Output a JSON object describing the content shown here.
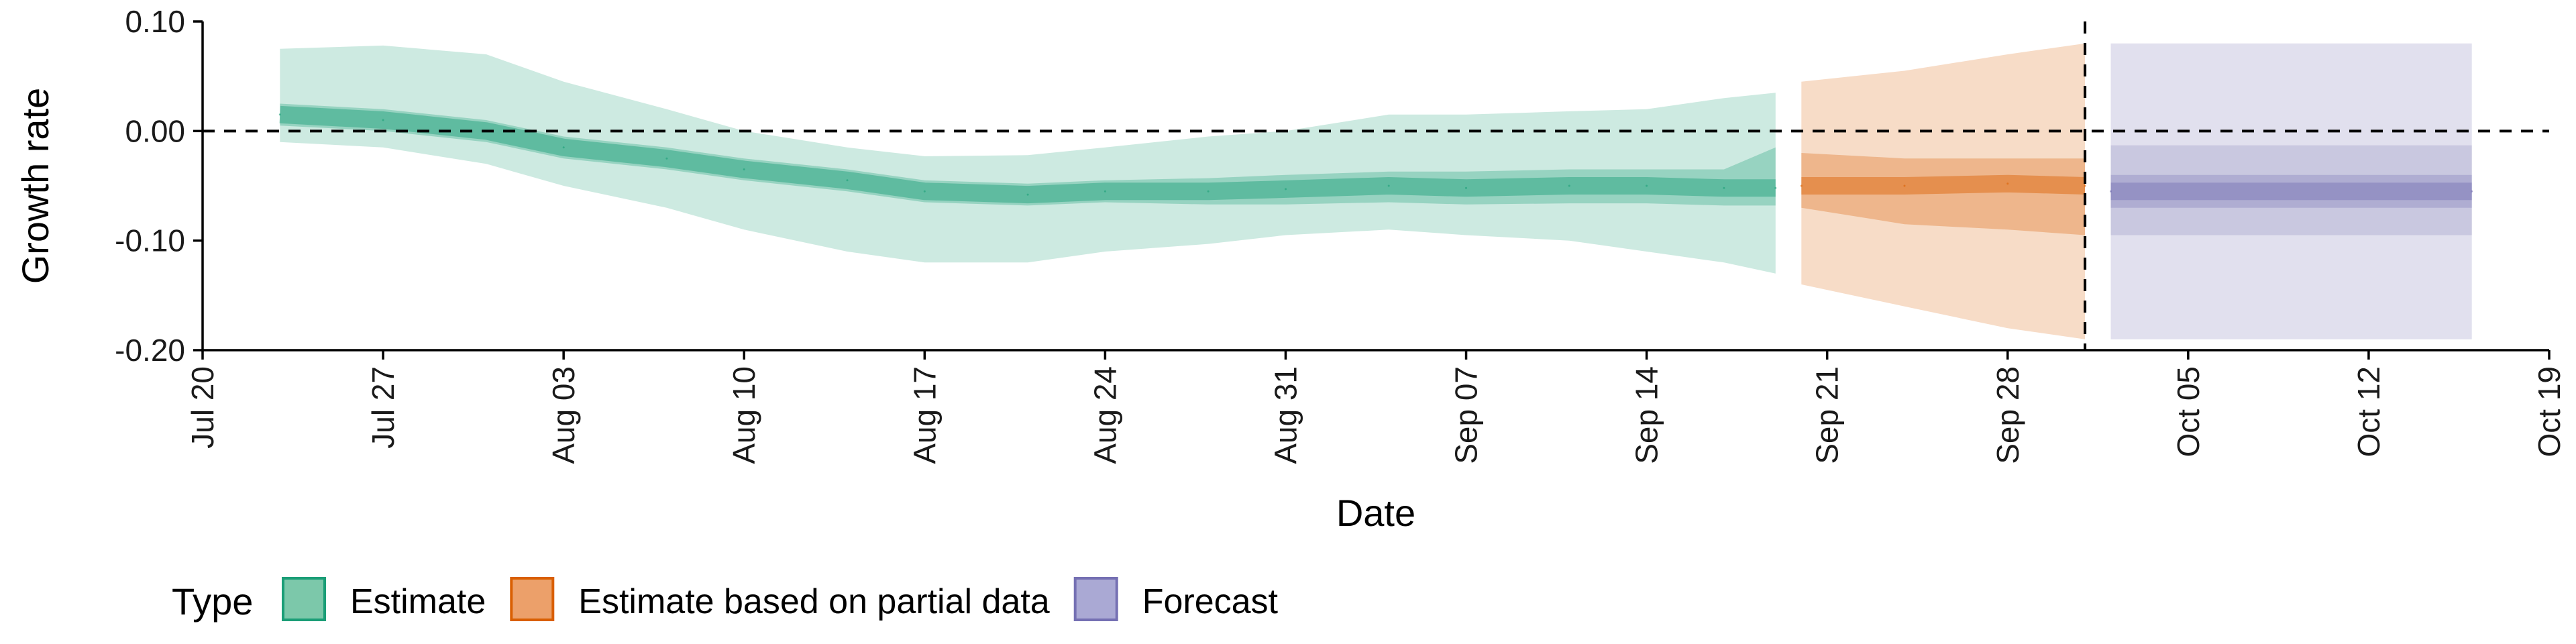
{
  "chart_data": {
    "type": "area",
    "xlabel": "Date",
    "ylabel": "Growth rate",
    "xlim": [
      "2020-07-20",
      "2020-10-19"
    ],
    "ylim": [
      -0.2,
      0.1
    ],
    "y_ticks": [
      0.1,
      0.0,
      -0.1,
      -0.2
    ],
    "y_tick_labels": [
      "0.10",
      "0.00",
      "-0.10",
      "-0.20"
    ],
    "x_ticks": [
      "2020-07-20",
      "2020-07-27",
      "2020-08-03",
      "2020-08-10",
      "2020-08-17",
      "2020-08-24",
      "2020-08-31",
      "2020-09-07",
      "2020-09-14",
      "2020-09-21",
      "2020-09-28",
      "2020-10-05",
      "2020-10-12",
      "2020-10-19"
    ],
    "x_tick_labels": [
      "Jul 20",
      "Jul 27",
      "Aug 03",
      "Aug 10",
      "Aug 17",
      "Aug 24",
      "Aug 31",
      "Sep 07",
      "Sep 14",
      "Sep 21",
      "Sep 28",
      "Oct 05",
      "Oct 12",
      "Oct 19"
    ],
    "reference_lines": {
      "horizontal_y": 0,
      "vertical_x": "2020-10-01"
    },
    "grid": false,
    "legend": {
      "title": "Type",
      "placement": "bottom-left",
      "entries": [
        {
          "label": "Estimate",
          "fill": "#7cc8aa",
          "stroke": "#1b9e77"
        },
        {
          "label": "Estimate based on partial data",
          "fill": "#eca06a",
          "stroke": "#d95f02"
        },
        {
          "label": "Forecast",
          "fill": "#aaa9d4",
          "stroke": "#7570b3"
        }
      ]
    },
    "series": [
      {
        "name": "Estimate",
        "color": "#1b9e77",
        "points": [
          {
            "x": "2020-07-23",
            "median": 0.015,
            "lower50": 0.005,
            "upper50": 0.025,
            "lower90": -0.01,
            "upper90": 0.075
          },
          {
            "x": "2020-07-27",
            "median": 0.01,
            "lower50": 0.0,
            "upper50": 0.02,
            "lower90": -0.015,
            "upper90": 0.078
          },
          {
            "x": "2020-07-31",
            "median": 0.0,
            "lower50": -0.01,
            "upper50": 0.01,
            "lower90": -0.03,
            "upper90": 0.07
          },
          {
            "x": "2020-08-03",
            "median": -0.015,
            "lower50": -0.025,
            "upper50": -0.005,
            "lower90": -0.05,
            "upper90": 0.045
          },
          {
            "x": "2020-08-07",
            "median": -0.025,
            "lower50": -0.035,
            "upper50": -0.015,
            "lower90": -0.07,
            "upper90": 0.02
          },
          {
            "x": "2020-08-10",
            "median": -0.035,
            "lower50": -0.045,
            "upper50": -0.025,
            "lower90": -0.09,
            "upper90": 0.0
          },
          {
            "x": "2020-08-14",
            "median": -0.045,
            "lower50": -0.055,
            "upper50": -0.035,
            "lower90": -0.11,
            "upper90": -0.015
          },
          {
            "x": "2020-08-17",
            "median": -0.055,
            "lower50": -0.065,
            "upper50": -0.045,
            "lower90": -0.12,
            "upper90": -0.023
          },
          {
            "x": "2020-08-21",
            "median": -0.058,
            "lower50": -0.068,
            "upper50": -0.048,
            "lower90": -0.12,
            "upper90": -0.022
          },
          {
            "x": "2020-08-24",
            "median": -0.055,
            "lower50": -0.065,
            "upper50": -0.045,
            "lower90": -0.11,
            "upper90": -0.015
          },
          {
            "x": "2020-08-28",
            "median": -0.055,
            "lower50": -0.067,
            "upper50": -0.043,
            "lower90": -0.103,
            "upper90": -0.005
          },
          {
            "x": "2020-08-31",
            "median": -0.053,
            "lower50": -0.067,
            "upper50": -0.04,
            "lower90": -0.095,
            "upper90": 0.0
          },
          {
            "x": "2020-09-04",
            "median": -0.05,
            "lower50": -0.065,
            "upper50": -0.037,
            "lower90": -0.09,
            "upper90": 0.015
          },
          {
            "x": "2020-09-07",
            "median": -0.052,
            "lower50": -0.067,
            "upper50": -0.037,
            "lower90": -0.095,
            "upper90": 0.015
          },
          {
            "x": "2020-09-11",
            "median": -0.05,
            "lower50": -0.066,
            "upper50": -0.035,
            "lower90": -0.1,
            "upper90": 0.018
          },
          {
            "x": "2020-09-14",
            "median": -0.05,
            "lower50": -0.066,
            "upper50": -0.035,
            "lower90": -0.11,
            "upper90": 0.02
          },
          {
            "x": "2020-09-17",
            "median": -0.052,
            "lower50": -0.068,
            "upper50": -0.035,
            "lower90": -0.12,
            "upper90": 0.03
          },
          {
            "x": "2020-09-19",
            "median": -0.052,
            "lower50": -0.068,
            "upper50": -0.015,
            "lower90": -0.13,
            "upper90": 0.035
          }
        ]
      },
      {
        "name": "Estimate based on partial data",
        "color": "#d95f02",
        "points": [
          {
            "x": "2020-09-20",
            "median": -0.05,
            "lower50": -0.07,
            "upper50": -0.02,
            "lower90": -0.14,
            "upper90": 0.045
          },
          {
            "x": "2020-09-24",
            "median": -0.05,
            "lower50": -0.085,
            "upper50": -0.025,
            "lower90": -0.16,
            "upper90": 0.055
          },
          {
            "x": "2020-09-28",
            "median": -0.048,
            "lower50": -0.09,
            "upper50": -0.025,
            "lower90": -0.18,
            "upper90": 0.07
          },
          {
            "x": "2020-10-01",
            "median": -0.05,
            "lower50": -0.095,
            "upper50": -0.025,
            "lower90": -0.19,
            "upper90": 0.08
          }
        ]
      },
      {
        "name": "Forecast",
        "color": "#7570b3",
        "points": [
          {
            "x": "2020-10-02",
            "median": -0.055,
            "lower50": -0.07,
            "upper50": -0.04,
            "lower90": -0.095,
            "upper90": -0.013,
            "lower95": -0.19,
            "upper95": 0.08
          },
          {
            "x": "2020-10-16",
            "median": -0.055,
            "lower50": -0.07,
            "upper50": -0.04,
            "lower90": -0.095,
            "upper90": -0.013,
            "lower95": -0.19,
            "upper95": 0.08
          }
        ]
      }
    ]
  }
}
